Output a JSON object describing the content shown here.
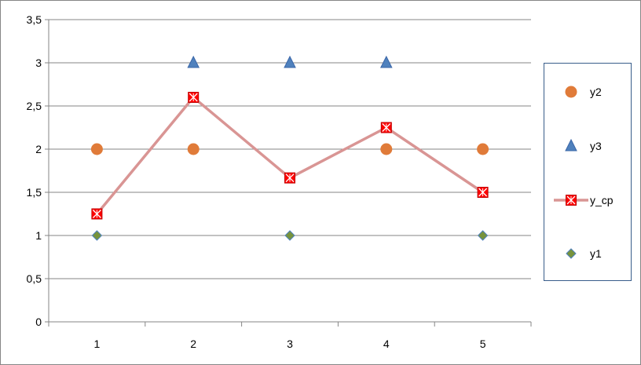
{
  "chart_data": {
    "type": "line",
    "x": [
      1,
      2,
      3,
      4,
      5
    ],
    "ylim": [
      0,
      3.5
    ],
    "y_ticks": [
      "0",
      "0,5",
      "1",
      "1,5",
      "2",
      "2,5",
      "3",
      "3,5"
    ],
    "x_ticks": [
      "1",
      "2",
      "3",
      "4",
      "5"
    ],
    "grid": "horizontal",
    "legend_position": "right",
    "series": [
      {
        "name": "y2",
        "marker": "circle",
        "line": false,
        "color": "#e07b39",
        "values": [
          2,
          2,
          null,
          2,
          2
        ]
      },
      {
        "name": "y3",
        "marker": "triangle",
        "line": false,
        "color": "#4f81bd",
        "values": [
          null,
          3,
          3,
          3,
          null
        ]
      },
      {
        "name": "y_cp",
        "marker": "square-x",
        "line": true,
        "color": "#ff0000",
        "line_color": "#d99594",
        "values": [
          1.25,
          2.6,
          1.6667,
          2.25,
          1.5
        ]
      },
      {
        "name": "y1",
        "marker": "diamond",
        "line": false,
        "color": "#77933c",
        "values": [
          1,
          null,
          1,
          null,
          1
        ]
      }
    ]
  }
}
